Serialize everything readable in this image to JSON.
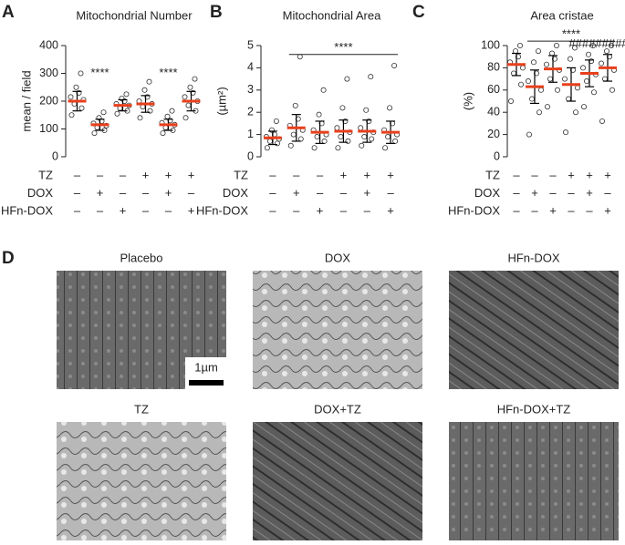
{
  "chart_data": [
    {
      "type": "dot",
      "panel": "A",
      "title": "Mitochondrial Number",
      "ylabel": "mean / field",
      "ylim": [
        0,
        400
      ],
      "yticks": [
        0,
        100,
        200,
        300,
        400
      ],
      "means": [
        200,
        115,
        185,
        190,
        115,
        200
      ],
      "sd": [
        35,
        20,
        20,
        30,
        20,
        35
      ],
      "points": [
        [
          150,
          175,
          190,
          205,
          215,
          230,
          250,
          300
        ],
        [
          85,
          95,
          105,
          112,
          120,
          128,
          140,
          160
        ],
        [
          155,
          165,
          175,
          185,
          190,
          200,
          210,
          225
        ],
        [
          140,
          165,
          180,
          190,
          200,
          215,
          240,
          270
        ],
        [
          85,
          95,
          105,
          115,
          122,
          130,
          145,
          165
        ],
        [
          140,
          165,
          185,
          200,
          215,
          230,
          250,
          280
        ]
      ],
      "annotations": [
        "****",
        "****"
      ],
      "conditions": [
        {
          "name": "TZ",
          "signs": [
            "–",
            "–",
            "–",
            "+",
            "+",
            "+"
          ]
        },
        {
          "name": "DOX",
          "signs": [
            "–",
            "+",
            "–",
            "–",
            "+",
            "–"
          ]
        },
        {
          "name": "HFn-DOX",
          "signs": [
            "–",
            "–",
            "+",
            "–",
            "–",
            "+"
          ]
        }
      ]
    },
    {
      "type": "dot",
      "panel": "B",
      "title": "Mitochondrial Area",
      "ylabel": "(µm²)",
      "ylim": [
        0,
        5
      ],
      "yticks": [
        0,
        1,
        2,
        3,
        4,
        5
      ],
      "means": [
        0.85,
        1.3,
        1.1,
        1.15,
        1.15,
        1.1
      ],
      "sd": [
        0.3,
        0.6,
        0.5,
        0.5,
        0.5,
        0.5
      ],
      "points": [
        [
          0.4,
          0.6,
          0.7,
          0.8,
          0.9,
          1.0,
          1.2,
          1.6
        ],
        [
          0.5,
          0.8,
          1.0,
          1.2,
          1.4,
          1.7,
          2.3,
          4.5
        ],
        [
          0.4,
          0.7,
          0.9,
          1.0,
          1.2,
          1.5,
          1.9,
          3.0
        ],
        [
          0.4,
          0.7,
          0.9,
          1.1,
          1.3,
          1.6,
          2.2,
          3.5
        ],
        [
          0.5,
          0.8,
          0.9,
          1.1,
          1.3,
          1.6,
          2.1,
          3.6
        ],
        [
          0.4,
          0.7,
          0.9,
          1.0,
          1.2,
          1.5,
          2.2,
          4.1
        ]
      ],
      "annotations": [
        "****"
      ],
      "conditions": [
        {
          "name": "TZ",
          "signs": [
            "–",
            "–",
            "–",
            "+",
            "+",
            "+"
          ]
        },
        {
          "name": "DOX",
          "signs": [
            "–",
            "+",
            "–",
            "–",
            "+",
            "–"
          ]
        },
        {
          "name": "HFn-DOX",
          "signs": [
            "–",
            "–",
            "+",
            "–",
            "–",
            "+"
          ]
        }
      ]
    },
    {
      "type": "dot",
      "panel": "C",
      "title": "Area cristae",
      "ylabel": "(%)",
      "ylim": [
        0,
        100
      ],
      "yticks": [
        0,
        20,
        40,
        60,
        80,
        100
      ],
      "means": [
        83,
        63,
        79,
        65,
        75,
        80
      ],
      "sd": [
        10,
        15,
        12,
        15,
        12,
        12
      ],
      "points": [
        [
          50,
          65,
          75,
          80,
          85,
          90,
          95,
          100
        ],
        [
          20,
          40,
          52,
          60,
          68,
          75,
          85,
          95
        ],
        [
          45,
          60,
          70,
          78,
          83,
          88,
          93,
          100
        ],
        [
          22,
          40,
          52,
          62,
          70,
          78,
          88,
          98
        ],
        [
          45,
          58,
          68,
          74,
          80,
          86,
          92,
          100
        ],
        [
          32,
          60,
          70,
          78,
          84,
          90,
          95,
          100
        ]
      ],
      "annotations": [
        "****",
        "#########"
      ],
      "conditions": [
        {
          "name": "TZ",
          "signs": [
            "–",
            "–",
            "–",
            "+",
            "+",
            "+"
          ]
        },
        {
          "name": "DOX",
          "signs": [
            "–",
            "+",
            "–",
            "–",
            "+",
            "–"
          ]
        },
        {
          "name": "HFn-DOX",
          "signs": [
            "–",
            "–",
            "+",
            "–",
            "–",
            "+"
          ]
        }
      ]
    }
  ],
  "micrographs": {
    "panel": "D",
    "labels": [
      "Placebo",
      "DOX",
      "HFn-DOX",
      "TZ",
      "DOX+TZ",
      "HFn-DOX+TZ"
    ],
    "scale_bar": "1µm"
  }
}
